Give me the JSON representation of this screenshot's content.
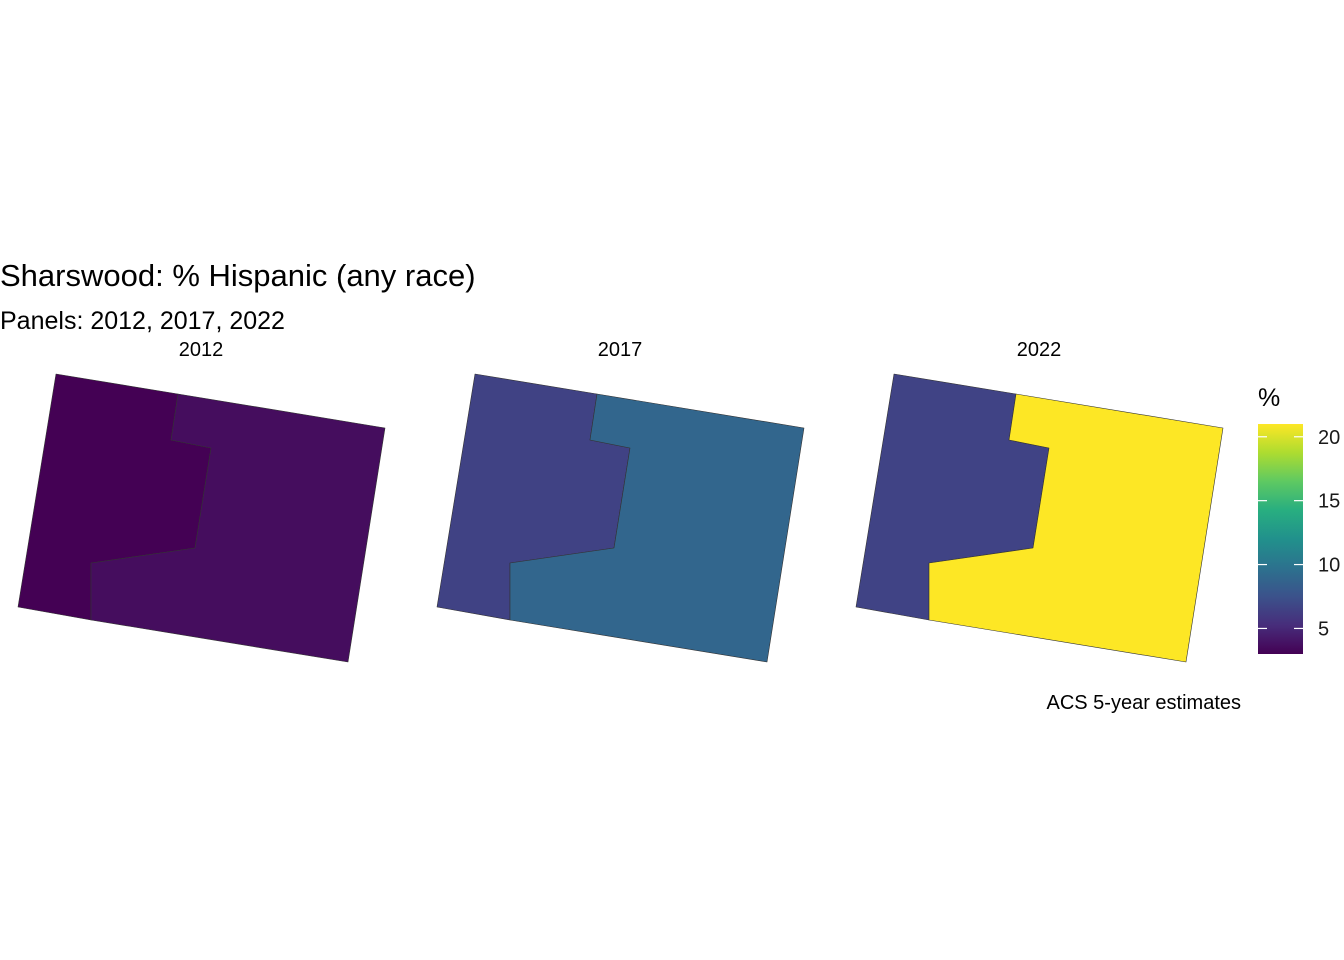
{
  "title": "Sharswood: % Hispanic (any race)",
  "subtitle": "Panels: 2012, 2017, 2022",
  "caption": "ACS 5-year estimates",
  "legend": {
    "title": "%",
    "ticks": [
      "5",
      "10",
      "15",
      "20"
    ],
    "tick_values": [
      5,
      10,
      15,
      20
    ],
    "range": [
      3,
      21
    ],
    "colors": [
      "#440154",
      "#472d7b",
      "#3b528b",
      "#2c728e",
      "#21918c",
      "#28ae80",
      "#5ec962",
      "#addc30",
      "#fde725"
    ]
  },
  "chart_data": {
    "type": "choropleth",
    "variable": "% Hispanic (any race)",
    "panels": [
      {
        "label": "2012",
        "regions": [
          {
            "name": "west-tract",
            "value": 3.0
          },
          {
            "name": "east-tract",
            "value": 3.6
          }
        ]
      },
      {
        "label": "2017",
        "regions": [
          {
            "name": "west-tract",
            "value": 6.5
          },
          {
            "name": "east-tract",
            "value": 8.9
          }
        ]
      },
      {
        "label": "2022",
        "regions": [
          {
            "name": "west-tract",
            "value": 6.6
          },
          {
            "name": "east-tract",
            "value": 21.0
          }
        ]
      }
    ]
  }
}
